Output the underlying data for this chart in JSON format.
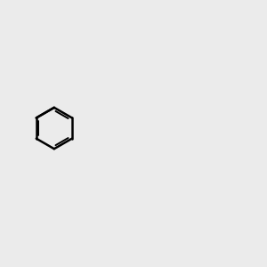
{
  "bg_color": "#ebebeb",
  "bond_color": "#000000",
  "n_color": "#0000ff",
  "o_color": "#ff0000",
  "s_color": "#cccc00",
  "figsize": [
    3.0,
    3.0
  ],
  "dpi": 100
}
